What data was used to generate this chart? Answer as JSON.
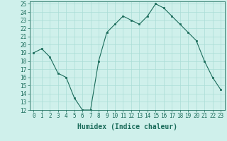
{
  "x": [
    0,
    1,
    2,
    3,
    4,
    5,
    6,
    7,
    8,
    9,
    10,
    11,
    12,
    13,
    14,
    15,
    16,
    17,
    18,
    19,
    20,
    21,
    22,
    23
  ],
  "y": [
    19,
    19.5,
    18.5,
    16.5,
    16,
    13.5,
    12,
    12,
    18,
    21.5,
    22.5,
    23.5,
    23,
    22.5,
    23.5,
    25,
    24.5,
    23.5,
    22.5,
    21.5,
    20.5,
    18,
    16,
    14.5
  ],
  "line_color": "#1a6b5a",
  "marker_color": "#1a6b5a",
  "bg_color": "#cff0eb",
  "grid_color": "#aaddd6",
  "xlabel": "Humidex (Indice chaleur)",
  "ylim": [
    12,
    25.3
  ],
  "xlim": [
    -0.5,
    23.5
  ],
  "yticks": [
    12,
    13,
    14,
    15,
    16,
    17,
    18,
    19,
    20,
    21,
    22,
    23,
    24,
    25
  ],
  "xticks": [
    0,
    1,
    2,
    3,
    4,
    5,
    6,
    7,
    8,
    9,
    10,
    11,
    12,
    13,
    14,
    15,
    16,
    17,
    18,
    19,
    20,
    21,
    22,
    23
  ],
  "tick_color": "#1a6b5a",
  "label_color": "#1a6b5a",
  "axis_color": "#1a6b5a",
  "tick_fontsize": 5.5,
  "xlabel_fontsize": 7.0
}
